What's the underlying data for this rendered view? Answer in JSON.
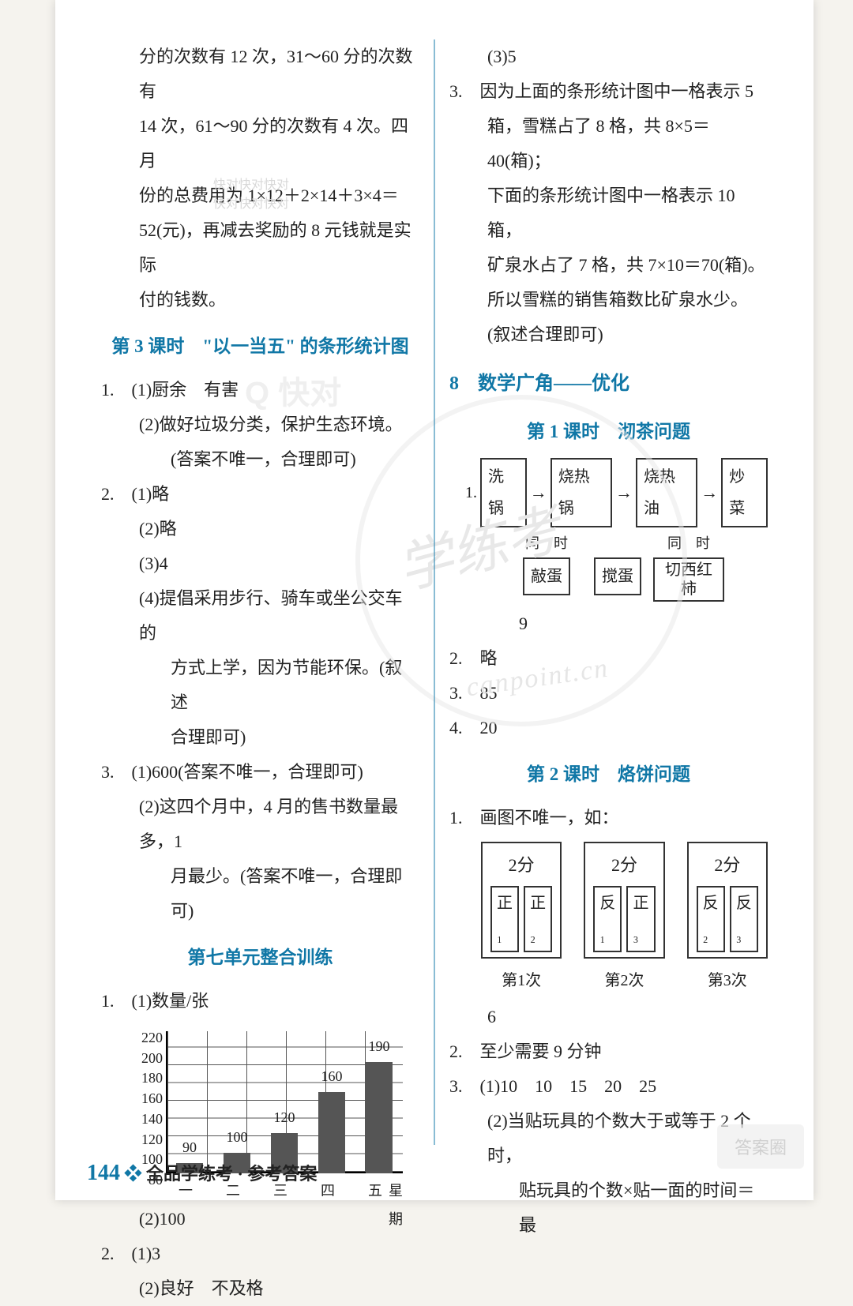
{
  "left": {
    "para1_l1": "分的次数有 12 次，31～60 分的次数有",
    "para1_l2": "14 次，61～90 分的次数有 4 次。四月",
    "para1_l3": "份的总费用为 1×12＋2×14＋3×4＝",
    "para1_l4": "52(元)，再减去奖励的 8 元钱就是实际",
    "para1_l5": "付的钱数。",
    "wm_small1": "快对快对快对",
    "wm_small2": "快对快对快对",
    "h3": "第 3 课时　\"以一当五\" 的条形统计图",
    "q1_1a": "1.　(1)厨余　有害",
    "q1_2": "(2)做好垃圾分类，保护生态环境。",
    "q1_2b": "(答案不唯一，合理即可)",
    "q2_1": "2.　(1)略",
    "q2_2": "(2)略",
    "q2_3": "(3)4",
    "q2_4a": "(4)提倡采用步行、骑车或坐公交车的",
    "q2_4b": "方式上学，因为节能环保。(叙述",
    "q2_4c": "合理即可)",
    "q3_1": "3.　(1)600(答案不唯一，合理即可)",
    "q3_2a": "(2)这四个月中，4 月的售书数量最多，1",
    "q3_2b": "月最少。(答案不唯一，合理即可)",
    "h7": "第七单元整合训练",
    "c_q1": "1.　(1)数量/张",
    "chart": {
      "yticks": [
        80,
        100,
        120,
        140,
        160,
        180,
        200,
        220
      ],
      "categories": [
        "一",
        "二",
        "三",
        "四",
        "五"
      ],
      "values": [
        90,
        100,
        120,
        160,
        190
      ],
      "x_title": "星期",
      "ymin": 80,
      "ymax": 220,
      "bar_color": "#555555"
    },
    "c_q1b": "(2)100",
    "c_q2_1": "2.　(1)3",
    "c_q2_2": "(2)良好　不及格"
  },
  "right": {
    "r_top": "(3)5",
    "r3a": "3.　因为上面的条形统计图中一格表示 5",
    "r3b": "箱，雪糕占了 8 格，共 8×5＝40(箱)；",
    "r3c": "下面的条形统计图中一格表示 10 箱，",
    "r3d": "矿泉水占了 7 格，共 7×10＝70(箱)。",
    "r3e": "所以雪糕的销售箱数比矿泉水少。",
    "r3f": "(叙述合理即可)",
    "h8": "8　数学广角——优化",
    "h8_1": "第 1 课时　沏茶问题",
    "flow": {
      "s1": "洗锅",
      "s2": "烧热锅",
      "s3": "烧热油",
      "s4": "炒菜",
      "t1": "同",
      "t1b": "时",
      "t2": "同",
      "t2b": "时",
      "b1": "敲蛋",
      "b2": "搅蛋",
      "b3": "切西红柿"
    },
    "rq_9": "9",
    "rq2": "2.　略",
    "rq3": "3.　85",
    "rq4": "4.　20",
    "h8_2": "第 2 课时　烙饼问题",
    "pq1": "1.　画图不唯一，如：",
    "pan": {
      "time": "2分",
      "c1a": "正₁",
      "c1b": "正₂",
      "c2a": "反₁",
      "c2b": "正₃",
      "c3a": "反₂",
      "c3b": "反₃",
      "l1": "第1次",
      "l2": "第2次",
      "l3": "第3次"
    },
    "p_6": "6",
    "pq2": "2.　至少需要 9 分钟",
    "pq3_1": "3.　(1)10　10　15　20　25",
    "pq3_2a": "(2)当贴玩具的个数大于或等于 2 个时，",
    "pq3_2b": "贴玩具的个数×贴一面的时间＝最"
  },
  "watermarks": {
    "kuaidui": "Q 快对",
    "center": "学练考",
    "url": "canpoint.cn",
    "corner": "答案圈"
  },
  "footer": {
    "page": "144",
    "sep": "❖",
    "text": "全品学练考 · 参考答案"
  }
}
